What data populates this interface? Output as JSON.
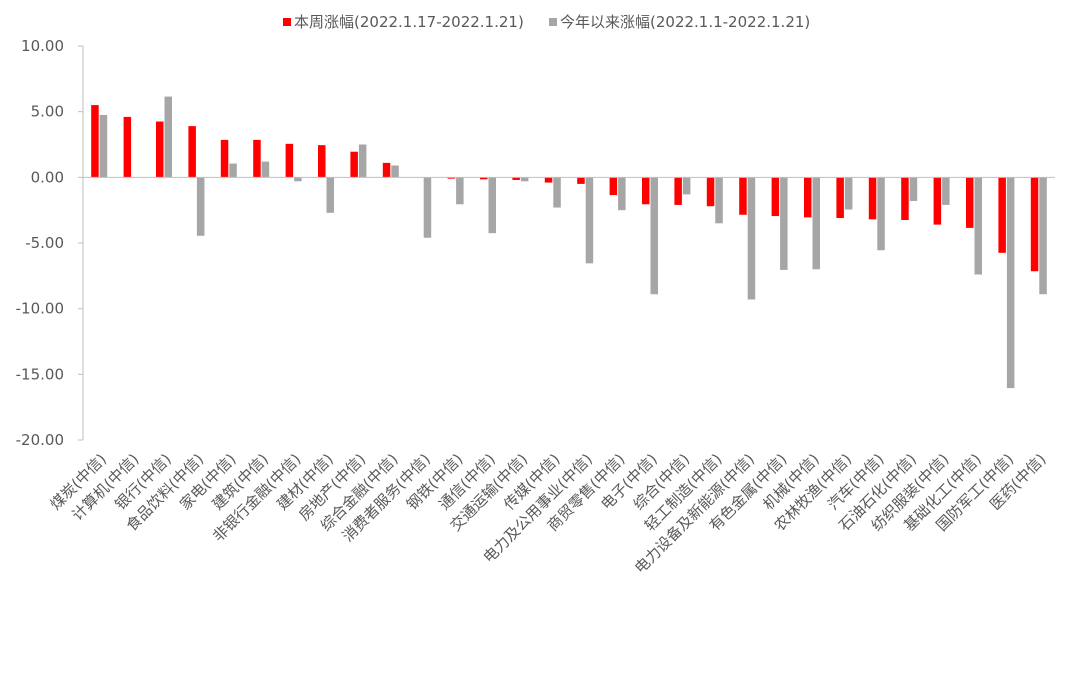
{
  "chart_data": {
    "type": "bar",
    "title": "",
    "xlabel": "",
    "ylabel": "",
    "ylim": [
      -20,
      10
    ],
    "yticks": [
      10,
      5,
      0,
      -5,
      -10,
      -15,
      -20
    ],
    "ytick_labels": [
      "10.00",
      "5.00",
      "0.00",
      "-5.00",
      "-10.00",
      "-15.00",
      "-20.00"
    ],
    "legend_position": "top",
    "categories": [
      "煤炭(中信)",
      "计算机(中信)",
      "银行(中信)",
      "食品饮料(中信)",
      "家电(中信)",
      "建筑(中信)",
      "非银行金融(中信)",
      "建材(中信)",
      "房地产(中信)",
      "综合金融(中信)",
      "消费者服务(中信)",
      "钢铁(中信)",
      "通信(中信)",
      "交通运输(中信)",
      "传媒(中信)",
      "电力及公用事业(中信)",
      "商贸零售(中信)",
      "电子(中信)",
      "综合(中信)",
      "轻工制造(中信)",
      "电力设备及新能源(中信)",
      "有色金属(中信)",
      "机械(中信)",
      "农林牧渔(中信)",
      "汽车(中信)",
      "石油石化(中信)",
      "纺织服装(中信)",
      "基础化工(中信)",
      "国防军工(中信)",
      "医药(中信)"
    ],
    "series": [
      {
        "name": "本周涨幅(2022.1.17-2022.1.21)",
        "color": "#ff0000",
        "values": [
          5.5,
          4.6,
          4.25,
          3.9,
          2.85,
          2.85,
          2.55,
          2.45,
          1.95,
          1.1,
          0.0,
          -0.1,
          -0.15,
          -0.2,
          -0.4,
          -0.5,
          -1.35,
          -2.05,
          -2.1,
          -2.2,
          -2.85,
          -2.95,
          -3.05,
          -3.1,
          -3.2,
          -3.25,
          -3.6,
          -3.85,
          -5.75,
          -7.15
        ]
      },
      {
        "name": "今年以来涨幅(2022.1.1-2022.1.21)",
        "color": "#a6a6a6",
        "values": [
          4.75,
          0.0,
          6.15,
          -4.45,
          1.05,
          1.2,
          -0.3,
          -2.7,
          2.5,
          0.9,
          -4.6,
          -2.05,
          -4.25,
          -0.3,
          -2.3,
          -6.55,
          -2.5,
          -8.9,
          -1.3,
          -3.5,
          -9.3,
          -7.05,
          -7.0,
          -2.45,
          -5.55,
          -1.8,
          -2.1,
          -7.4,
          -16.05,
          -8.9
        ]
      }
    ]
  }
}
